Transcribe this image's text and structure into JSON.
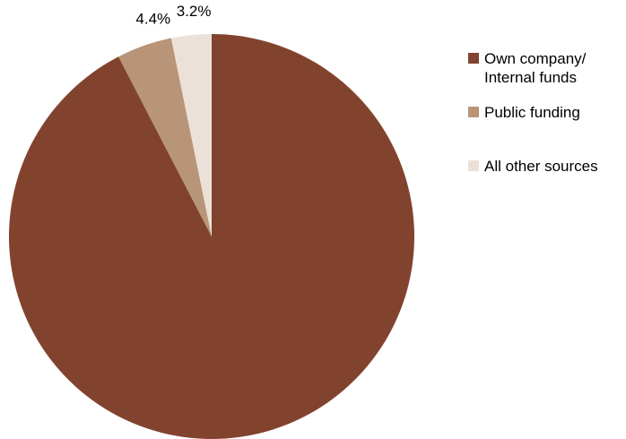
{
  "chart_data": {
    "type": "pie",
    "title": "",
    "slices": [
      {
        "label": "Own company/\nInternal funds",
        "value": 92.4,
        "value_label": "92.4%",
        "color": "#82432e"
      },
      {
        "label": "Public funding",
        "value": 4.4,
        "value_label": "4.4%",
        "color": "#b89578"
      },
      {
        "label": "All other sources",
        "value": 3.2,
        "value_label": "3.2%",
        "color": "#ece1d9"
      }
    ],
    "start_angle_deg": 0,
    "direction": "clockwise",
    "legend": {
      "position": "right"
    }
  }
}
